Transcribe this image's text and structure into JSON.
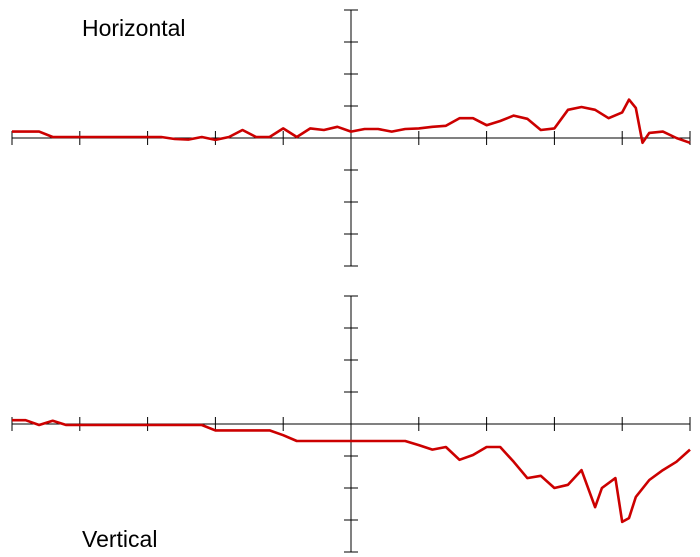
{
  "chart_data": [
    {
      "type": "line",
      "title": "Horizontal",
      "x": [
        -5,
        -4.8,
        -4.6,
        -4.4,
        -4.2,
        -4,
        -3.6,
        -3.2,
        -2.8,
        -2.6,
        -2.4,
        -2.2,
        -2,
        -1.8,
        -1.6,
        -1.4,
        -1.2,
        -1,
        -0.8,
        -0.6,
        -0.4,
        -0.2,
        0,
        0.2,
        0.4,
        0.6,
        0.8,
        1,
        1.2,
        1.4,
        1.6,
        1.8,
        2,
        2.2,
        2.4,
        2.6,
        2.8,
        3,
        3.2,
        3.4,
        3.6,
        3.8,
        4,
        4.1,
        4.2,
        4.3,
        4.4,
        4.6,
        4.8,
        5
      ],
      "values": [
        0.2,
        0.2,
        0.2,
        0.03,
        0.03,
        0.03,
        0.03,
        0.03,
        0.03,
        -0.03,
        -0.05,
        0.03,
        -0.06,
        0.03,
        0.25,
        0.03,
        0.03,
        0.3,
        0.03,
        0.3,
        0.25,
        0.35,
        0.2,
        0.28,
        0.28,
        0.2,
        0.28,
        0.3,
        0.35,
        0.38,
        0.62,
        0.62,
        0.4,
        0.53,
        0.7,
        0.6,
        0.25,
        0.3,
        0.88,
        0.97,
        0.88,
        0.62,
        0.8,
        1.2,
        0.94,
        -0.15,
        0.16,
        0.2,
        0,
        -0.15
      ],
      "color": "#cc0000",
      "xlim": [
        -5,
        5
      ],
      "xticks": [
        -5,
        -4,
        -3,
        -2,
        -1,
        0,
        1,
        2,
        3,
        4,
        5
      ],
      "ylim": [
        -4,
        4
      ],
      "yticks": [
        -4,
        -3,
        -2,
        -1,
        0,
        1,
        2,
        3,
        4
      ]
    },
    {
      "type": "line",
      "title": "Vertical",
      "x": [
        -5,
        -4.8,
        -4.6,
        -4.4,
        -4.2,
        -4,
        -3.6,
        -3.2,
        -2.8,
        -2.4,
        -2.2,
        -2,
        -1.6,
        -1.2,
        -1,
        -0.8,
        0,
        0.8,
        1,
        1.2,
        1.4,
        1.6,
        1.8,
        2,
        2.2,
        2.4,
        2.6,
        2.8,
        3,
        3.2,
        3.4,
        3.6,
        3.7,
        3.9,
        4,
        4.1,
        4.2,
        4.4,
        4.6,
        4.8,
        5
      ],
      "values": [
        0.12,
        0.12,
        -0.03,
        0.1,
        -0.03,
        -0.03,
        -0.03,
        -0.03,
        -0.03,
        -0.03,
        -0.03,
        -0.2,
        -0.2,
        -0.2,
        -0.35,
        -0.53,
        -0.53,
        -0.53,
        -0.66,
        -0.8,
        -0.72,
        -1.12,
        -0.97,
        -0.72,
        -0.72,
        -1.18,
        -1.69,
        -1.62,
        -2,
        -1.9,
        -1.44,
        -2.6,
        -2,
        -1.69,
        -3.06,
        -2.94,
        -2.28,
        -1.75,
        -1.44,
        -1.18,
        -0.8
      ],
      "color": "#cc0000",
      "xlim": [
        -5,
        5
      ],
      "xticks": [
        -5,
        -4,
        -3,
        -2,
        -1,
        0,
        1,
        2,
        3,
        4,
        5
      ],
      "ylim": [
        -4,
        4
      ],
      "yticks": [
        -4,
        -3,
        -2,
        -1,
        0,
        1,
        2,
        3,
        4
      ]
    }
  ]
}
